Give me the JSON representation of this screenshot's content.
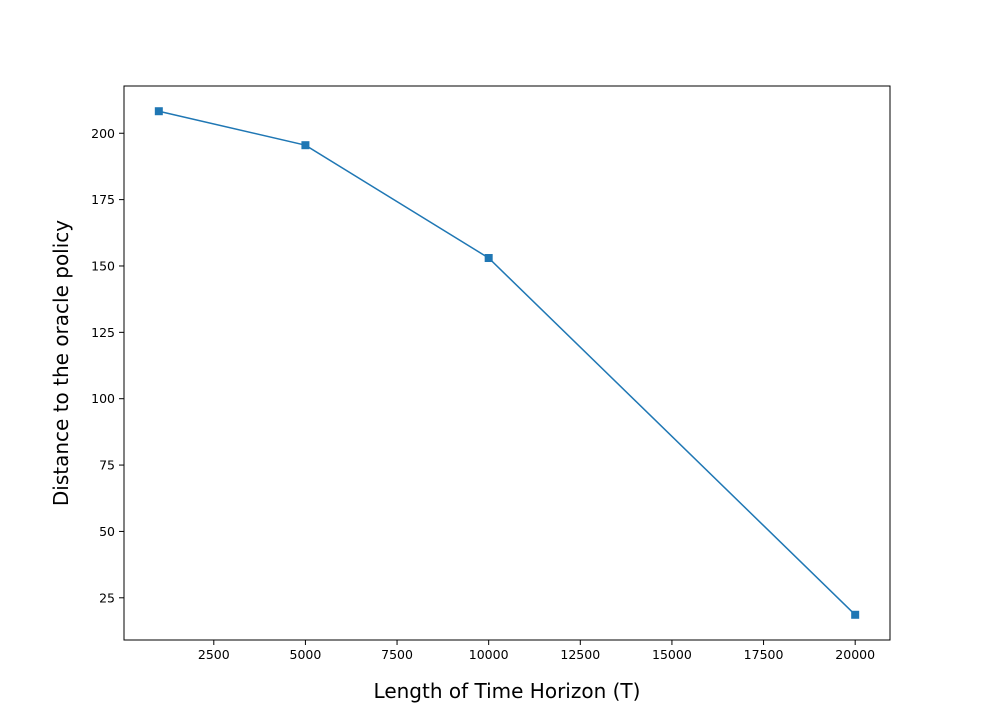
{
  "chart_data": {
    "type": "line",
    "x_label": "Length of Time Horizon (T)",
    "y_label": "Distance to the oracle policy",
    "x": [
      1000,
      5000,
      10000,
      20000
    ],
    "series": [
      {
        "color": "#1f77b4",
        "marker": "square",
        "values": [
          208.3,
          195.5,
          153,
          18.6
        ]
      }
    ],
    "xlim": [
      50,
      20950
    ],
    "ylim": [
      9.1,
      217.8
    ],
    "xticks": [
      2500,
      5000,
      7500,
      10000,
      12500,
      15000,
      17500,
      20000
    ],
    "yticks": [
      25,
      50,
      75,
      100,
      125,
      150,
      175,
      200
    ],
    "grid": false
  }
}
